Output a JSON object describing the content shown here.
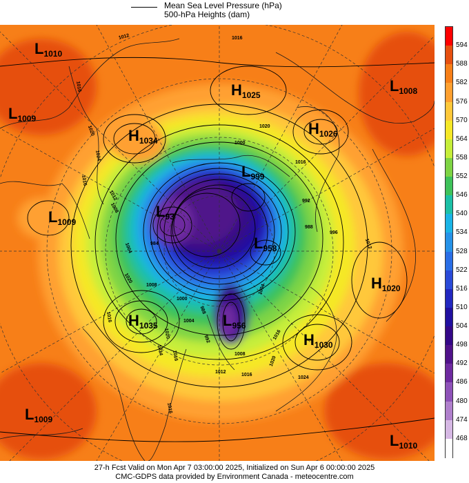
{
  "legend": {
    "line1": "Mean Sea Level Pressure (hPa)",
    "line2": "500-hPa Heights (dam)"
  },
  "colorbar": {
    "ticks": [
      "594",
      "588",
      "582",
      "576",
      "570",
      "564",
      "558",
      "552",
      "546",
      "540",
      "534",
      "528",
      "522",
      "516",
      "510",
      "504",
      "498",
      "492",
      "486",
      "480",
      "474",
      "468"
    ],
    "colors": [
      "#ff0000",
      "#e65010",
      "#f77f18",
      "#ffa030",
      "#ffc83a",
      "#f5e828",
      "#c6ee3a",
      "#7ed444",
      "#3ec25a",
      "#1cc0a6",
      "#1ab4e6",
      "#2692e8",
      "#2a6ee6",
      "#2a4ad8",
      "#2228c0",
      "#2010a0",
      "#340888",
      "#50128a",
      "#6e2aa0",
      "#8e52b8",
      "#b080cc",
      "#d6b8e4",
      "#ffffff"
    ]
  },
  "centers": [
    {
      "type": "L",
      "value": "1010"
    },
    {
      "type": "L",
      "value": "1009"
    },
    {
      "type": "H",
      "value": "1034"
    },
    {
      "type": "H",
      "value": "1025"
    },
    {
      "type": "H",
      "value": "1026"
    },
    {
      "type": "L",
      "value": "1008"
    },
    {
      "type": "L",
      "value": "999"
    },
    {
      "type": "L",
      "value": "1009"
    },
    {
      "type": "L",
      "value": "93"
    },
    {
      "type": "L",
      "value": "958"
    },
    {
      "type": "H",
      "value": "1020"
    },
    {
      "type": "H",
      "value": "1035"
    },
    {
      "type": "L",
      "value": "956"
    },
    {
      "type": "H",
      "value": "1030"
    },
    {
      "type": "L",
      "value": "1009"
    },
    {
      "type": "L",
      "value": "1010"
    }
  ],
  "isobar_labels": [
    "1012",
    "1016",
    "1020",
    "1024",
    "1016",
    "1000",
    "992",
    "1004",
    "1008",
    "1016",
    "1020",
    "984",
    "988",
    "996",
    "1012",
    "1004",
    "1008",
    "1000",
    "988",
    "992",
    "1004",
    "1008",
    "1020",
    "1016",
    "1012",
    "1016",
    "1020",
    "1024",
    "1016",
    "1020",
    "1016",
    "1024",
    "1016",
    "1016",
    "1012"
  ],
  "footer": {
    "line1": "27-h Fcst Valid on Mon Apr  7 03:00:00 2025, Initialized on Sun Apr  6 00:00:00 2025",
    "line2": "CMC-GDPS data provided by Environment Canada - meteocentre.com"
  }
}
